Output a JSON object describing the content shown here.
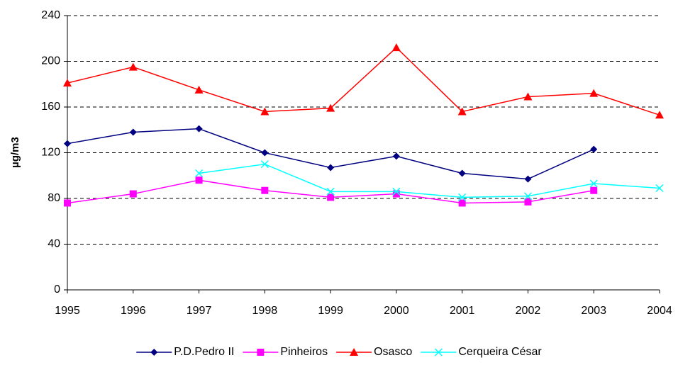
{
  "chart_data": {
    "type": "line",
    "y_label": "µg/m3",
    "categories": [
      "1995",
      "1996",
      "1997",
      "1998",
      "1999",
      "2000",
      "2001",
      "2002",
      "2003",
      "2004"
    ],
    "series": [
      {
        "name": "P.D.Pedro II",
        "color": "#000080",
        "marker": "diamond",
        "values": [
          128,
          138,
          141,
          120,
          107,
          117,
          102,
          97,
          123,
          null
        ]
      },
      {
        "name": "Pinheiros",
        "color": "#ff00ff",
        "marker": "square",
        "values": [
          76,
          84,
          96,
          87,
          81,
          84,
          76,
          77,
          87,
          null
        ]
      },
      {
        "name": "Osasco",
        "color": "#ff0000",
        "marker": "triangle",
        "values": [
          181,
          195,
          175,
          156,
          159,
          212,
          156,
          169,
          172,
          153
        ]
      },
      {
        "name": "Cerqueira César",
        "color": "#00ffff",
        "marker": "x",
        "values": [
          null,
          null,
          102,
          110,
          86,
          86,
          81,
          82,
          93,
          89
        ]
      }
    ],
    "ylim": [
      0,
      240
    ],
    "yticks": [
      0,
      40,
      80,
      120,
      160,
      200,
      240
    ],
    "grid": true,
    "legend": "bottom"
  }
}
